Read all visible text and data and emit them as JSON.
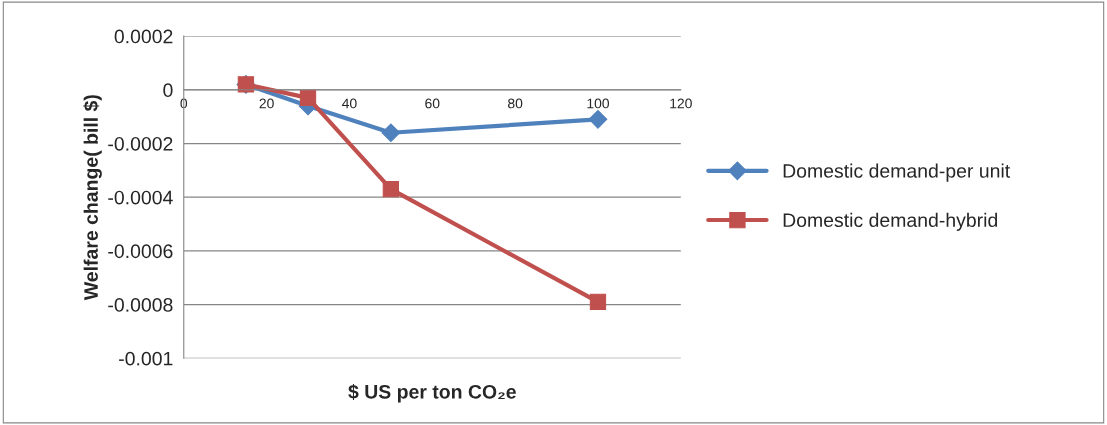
{
  "chart_data": {
    "type": "line",
    "xlabel": "$ US per ton CO₂e",
    "ylabel": "Welfare change( bill $)",
    "x": [
      15,
      30,
      50,
      100
    ],
    "series": [
      {
        "name": "Domestic demand-per unit",
        "color": "#4f81bd",
        "marker": "diamond",
        "values": [
          2e-05,
          -6e-05,
          -0.00016,
          -0.00011
        ]
      },
      {
        "name": "Domestic demand-hybrid",
        "color": "#c0504d",
        "marker": "square",
        "values": [
          2e-05,
          -3e-05,
          -0.00037,
          -0.00079
        ]
      }
    ],
    "xlim": [
      0,
      120
    ],
    "xticks": [
      0,
      20,
      40,
      60,
      80,
      100,
      120
    ],
    "ylim": [
      -0.001,
      0.0002
    ],
    "yticks": [
      {
        "value": 0.0002,
        "label": "0.0002"
      },
      0,
      {
        "value": -0.0002,
        "label": "-0.0002"
      },
      {
        "value": -0.0004,
        "label": "-0.0004"
      },
      {
        "value": -0.0006,
        "label": "-0.0006"
      },
      {
        "value": -0.0008,
        "label": "-0.0008"
      },
      {
        "value": -0.001,
        "label": "-0.001"
      }
    ],
    "grid": "y",
    "legend": "right",
    "line_style": "solid"
  }
}
